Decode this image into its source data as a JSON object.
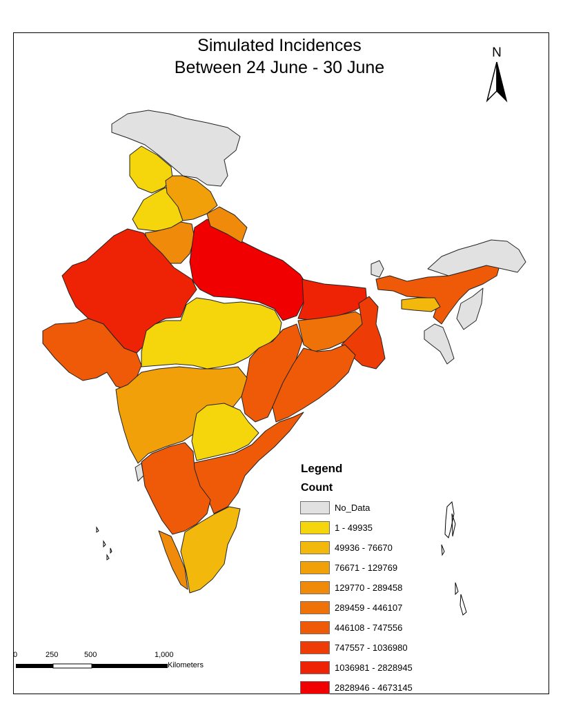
{
  "title": {
    "line1": "Simulated Incidences",
    "line2": "Between 24 June - 30 June"
  },
  "north_arrow": {
    "label": "N"
  },
  "legend": {
    "title": "Legend",
    "field": "Count",
    "items": [
      {
        "label": "No_Data",
        "color": "#e1e1e1"
      },
      {
        "label": "1 - 49935",
        "color": "#f5d60c"
      },
      {
        "label": "49936 - 76670",
        "color": "#f2b80c"
      },
      {
        "label": "76671 - 129769",
        "color": "#f2a00a"
      },
      {
        "label": "129770 - 289458",
        "color": "#f08a0a"
      },
      {
        "label": "289459 - 446107",
        "color": "#ef7208"
      },
      {
        "label": "446108 - 747556",
        "color": "#ef5a08"
      },
      {
        "label": "747557 - 1036980",
        "color": "#ee3c06"
      },
      {
        "label": "1036981 - 2828945",
        "color": "#ee2204"
      },
      {
        "label": "2828946 - 4673145",
        "color": "#f00000"
      }
    ]
  },
  "scale_bar": {
    "ticks": [
      "0",
      "250",
      "500",
      "1,000"
    ],
    "units": "Kilometers"
  }
}
